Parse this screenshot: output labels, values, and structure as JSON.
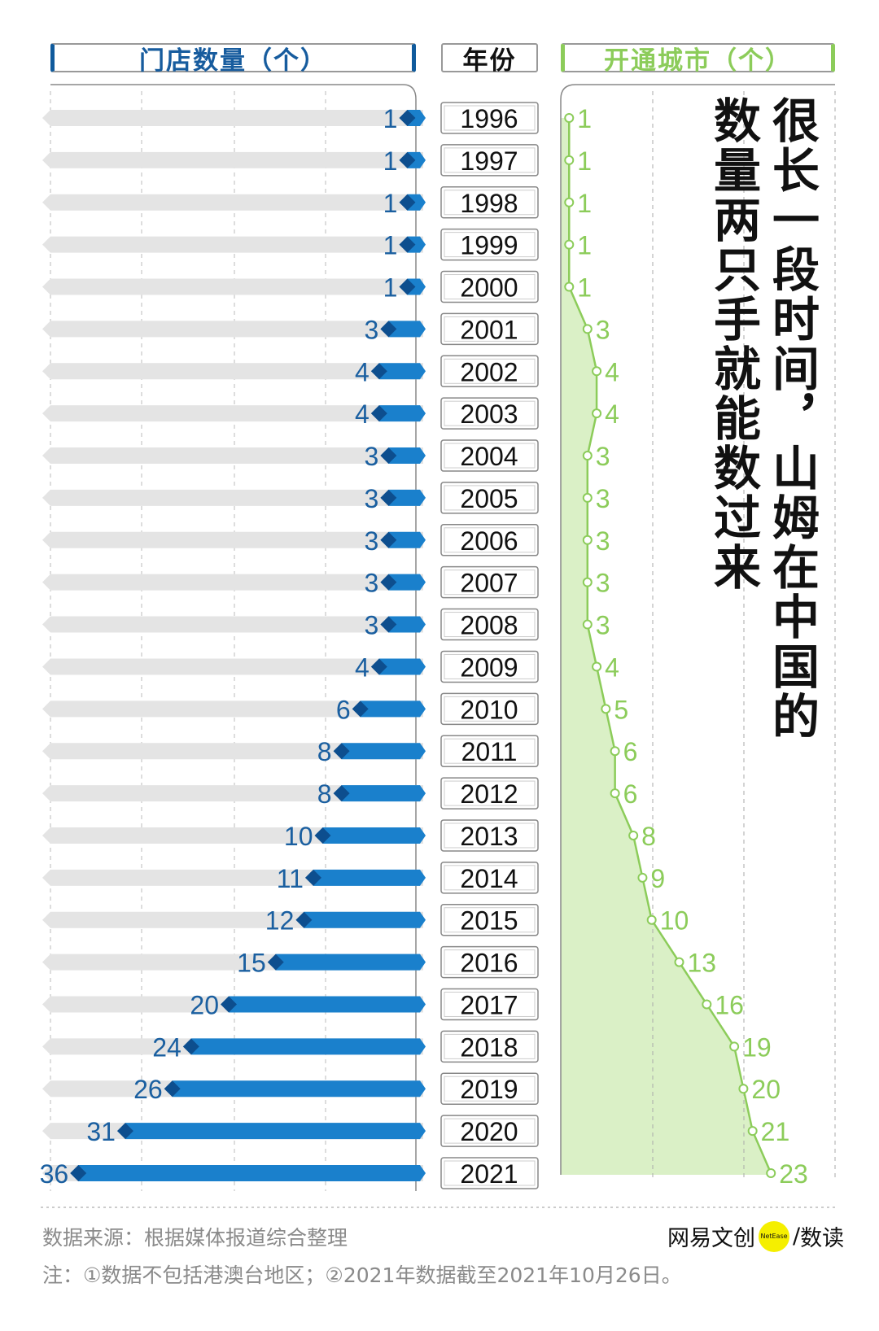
{
  "headers": {
    "stores": "门店数量（个）",
    "year": "年份",
    "cities": "开通城市（个）"
  },
  "title": {
    "line1": "很长一段时间，山姆在中国的",
    "line2": "数量两只手就能数过来"
  },
  "chart_data": {
    "type": "bar",
    "title": "很长一段时间，山姆在中国的数量两只手就能数过来",
    "categories": [
      "1996",
      "1997",
      "1998",
      "1999",
      "2000",
      "2001",
      "2002",
      "2003",
      "2004",
      "2005",
      "2006",
      "2007",
      "2008",
      "2009",
      "2010",
      "2011",
      "2012",
      "2013",
      "2014",
      "2015",
      "2016",
      "2017",
      "2018",
      "2019",
      "2020",
      "2021"
    ],
    "series": [
      {
        "name": "门店数量（个）",
        "type": "bar",
        "values": [
          1,
          1,
          1,
          1,
          1,
          3,
          4,
          4,
          3,
          3,
          3,
          3,
          3,
          4,
          6,
          8,
          8,
          10,
          11,
          12,
          15,
          20,
          24,
          26,
          31,
          36
        ]
      },
      {
        "name": "开通城市（个）",
        "type": "line-area",
        "values": [
          1,
          1,
          1,
          1,
          1,
          3,
          4,
          4,
          3,
          3,
          3,
          3,
          3,
          4,
          5,
          6,
          6,
          8,
          9,
          10,
          13,
          16,
          19,
          20,
          21,
          23
        ]
      }
    ],
    "colors": {
      "stores": "#1a80cc",
      "stores_dark": "#0d4e8e",
      "stores_label": "#1a5fa0",
      "cities": "#8ccc5a",
      "cities_fill": "#daf0c6",
      "track": "#e4e4e4"
    }
  },
  "footer": {
    "source": "数据来源：根据媒体报道综合整理",
    "note": "注：①数据不包括港澳台地区；②2021年数据截至2021年10月26日。",
    "logo_brand": "网易文创",
    "logo_badge": "NetEase",
    "logo_sep": "/",
    "logo_section": "数读"
  }
}
